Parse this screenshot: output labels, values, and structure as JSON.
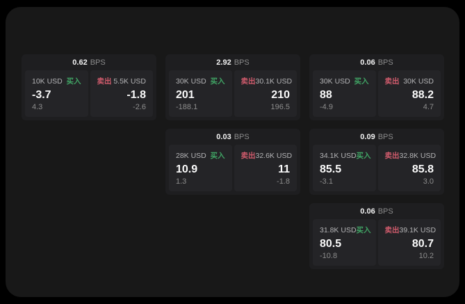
{
  "labels": {
    "bps_unit": "BPS",
    "buy_label": "买入",
    "sell_label": "卖出"
  },
  "colors": {
    "outer_bg": "#000000",
    "window_bg": "#181818",
    "card_bg": "#1e1e20",
    "panel_bg": "#242427",
    "text_primary": "#fafafa",
    "text_size_label": "#b4b4b6",
    "text_muted": "#8d8d8d",
    "buy_green": "#40a364",
    "sell_red": "#cf5b6c"
  },
  "cards": [
    {
      "row": 1,
      "col": 1,
      "bps_value": "0.62",
      "buy": {
        "size": "10K USD",
        "price": "-3.7",
        "sub": "4.3"
      },
      "sell": {
        "size": "5.5K USD",
        "price": "-1.8",
        "sub": "-2.6"
      }
    },
    {
      "row": 1,
      "col": 2,
      "bps_value": "2.92",
      "buy": {
        "size": "30K USD",
        "price": "201",
        "sub": "-188.1"
      },
      "sell": {
        "size": "30.1K USD",
        "price": "210",
        "sub": "196.5"
      }
    },
    {
      "row": 1,
      "col": 3,
      "bps_value": "0.06",
      "buy": {
        "size": "30K USD",
        "price": "88",
        "sub": "-4.9"
      },
      "sell": {
        "size": "30K USD",
        "price": "88.2",
        "sub": "4.7"
      }
    },
    {
      "row": 2,
      "col": 2,
      "bps_value": "0.03",
      "buy": {
        "size": "28K USD",
        "price": "10.9",
        "sub": "1.3"
      },
      "sell": {
        "size": "32.6K USD",
        "price": "11",
        "sub": "-1.8"
      }
    },
    {
      "row": 2,
      "col": 3,
      "bps_value": "0.09",
      "buy": {
        "size": "34.1K USD",
        "price": "85.5",
        "sub": "-3.1"
      },
      "sell": {
        "size": "32.8K USD",
        "price": "85.8",
        "sub": "3.0"
      }
    },
    {
      "row": 3,
      "col": 3,
      "bps_value": "0.06",
      "buy": {
        "size": "31.8K USD",
        "price": "80.5",
        "sub": "-10.8"
      },
      "sell": {
        "size": "39.1K USD",
        "price": "80.7",
        "sub": "10.2"
      }
    }
  ]
}
